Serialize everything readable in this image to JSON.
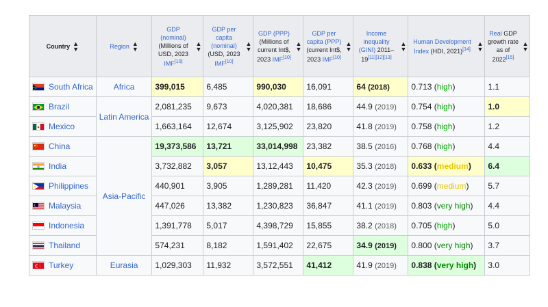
{
  "headers": {
    "country": "Country",
    "region": "Region",
    "gdp_nominal": {
      "link": "GDP (nominal)",
      "rest": " (Millions of USD, 2023 ",
      "imf": "IMF",
      "ref": "[10]"
    },
    "gdp_pc_nominal": {
      "link": "GDP per capita (nominal)",
      "rest": " (USD, 2023 ",
      "imf": "IMF",
      "ref": "[10]"
    },
    "gdp_ppp": {
      "link": "GDP (PPP)",
      "rest": " (Millions of current Int$, 2023 ",
      "imf": "IMF",
      "ref": "[10]"
    },
    "gdp_pc_ppp": {
      "link": "GDP per capita (PPP)",
      "rest": " (current Int$, 2023 ",
      "imf": "IMF",
      "ref": "[10]"
    },
    "inequality": {
      "link": "Income inequality (GINI)",
      "rest": " 2011–19",
      "ref": "[11][12][13]"
    },
    "hdi": {
      "link": "Human Development Index",
      "rest": " (HDI, 2021)",
      "ref": "[14]"
    },
    "growth": {
      "link": "Real",
      "rest": "GDP growth rate as of 2022",
      "ref": "[15]"
    }
  },
  "regions": {
    "africa": "Africa",
    "latam": "Latin America",
    "apac": "Asia-Pacific",
    "eurasia": "Eurasia"
  },
  "rows": [
    {
      "country": "South Africa",
      "gdp": "399,015",
      "gdppc": "6,485",
      "ppp": "990,030",
      "ppppc": "16,091",
      "gini": "64",
      "gini_year": "(2018)",
      "hdi": "0.713",
      "hdi_cat": "high",
      "growth": "1.1"
    },
    {
      "country": "Brazil",
      "gdp": "2,081,235",
      "gdppc": "9,673",
      "ppp": "4,020,381",
      "ppppc": "18,686",
      "gini": "44.9",
      "gini_year": "(2019)",
      "hdi": "0.754",
      "hdi_cat": "high",
      "growth": "1.0"
    },
    {
      "country": "Mexico",
      "gdp": "1,663,164",
      "gdppc": "12,674",
      "ppp": "3,125,902",
      "ppppc": "23,820",
      "gini": "41.8",
      "gini_year": "(2019)",
      "hdi": "0.758",
      "hdi_cat": "high",
      "growth": "1.2"
    },
    {
      "country": "China",
      "gdp": "19,373,586",
      "gdppc": "13,721",
      "ppp": "33,014,998",
      "ppppc": "23,382",
      "gini": "38.5",
      "gini_year": "(2016)",
      "hdi": "0.768",
      "hdi_cat": "high",
      "growth": "4.4"
    },
    {
      "country": "India",
      "gdp": "3,732,882",
      "gdppc": "3,057",
      "ppp": "13,12,443",
      "ppppc": "10,475",
      "gini": "35.3",
      "gini_year": "(2018)",
      "hdi": "0.633",
      "hdi_cat": "medium",
      "growth": "6.4"
    },
    {
      "country": "Philippines",
      "gdp": "440,901",
      "gdppc": "3,905",
      "ppp": "1,289,281",
      "ppppc": "11,420",
      "gini": "42.3",
      "gini_year": "(2019)",
      "hdi": "0.699",
      "hdi_cat": "medium",
      "growth": "5.7"
    },
    {
      "country": "Malaysia",
      "gdp": "447,026",
      "gdppc": "13,382",
      "ppp": "1,230,823",
      "ppppc": "36,847",
      "gini": "41.1",
      "gini_year": "(2019)",
      "hdi": "0.803",
      "hdi_cat": "very high",
      "growth": "4.4"
    },
    {
      "country": "Indonesia",
      "gdp": "1,391,778",
      "gdppc": "5,017",
      "ppp": "4,398,729",
      "ppppc": "15,855",
      "gini": "38.2",
      "gini_year": "(2018)",
      "hdi": "0.705",
      "hdi_cat": "high",
      "growth": "5.0"
    },
    {
      "country": "Thailand",
      "gdp": "574,231",
      "gdppc": "8,182",
      "ppp": "1,591,402",
      "ppppc": "22,675",
      "gini": "34.9",
      "gini_year": "(2019)",
      "hdi": "0.800",
      "hdi_cat": "very high",
      "growth": "3.7"
    },
    {
      "country": "Turkey",
      "gdp": "1,029,303",
      "gdppc": "11,932",
      "ppp": "3,572,551",
      "ppppc": "41,412",
      "gini": "41.9",
      "gini_year": "(2019)",
      "hdi": "0.838",
      "hdi_cat": "very high",
      "growth": "3.0"
    }
  ],
  "colors": {
    "highlight_yellow": "#ffffcc",
    "highlight_green": "#ddffdd",
    "hdi_high": "#00aa00",
    "hdi_very_high": "#008800",
    "hdi_medium": "#e6c700",
    "link": "#3366cc"
  },
  "icons": {
    "sort": "sort-arrows-icon",
    "flags": [
      "south-africa-flag-icon",
      "brazil-flag-icon",
      "mexico-flag-icon",
      "china-flag-icon",
      "india-flag-icon",
      "philippines-flag-icon",
      "malaysia-flag-icon",
      "indonesia-flag-icon",
      "thailand-flag-icon",
      "turkey-flag-icon"
    ]
  }
}
